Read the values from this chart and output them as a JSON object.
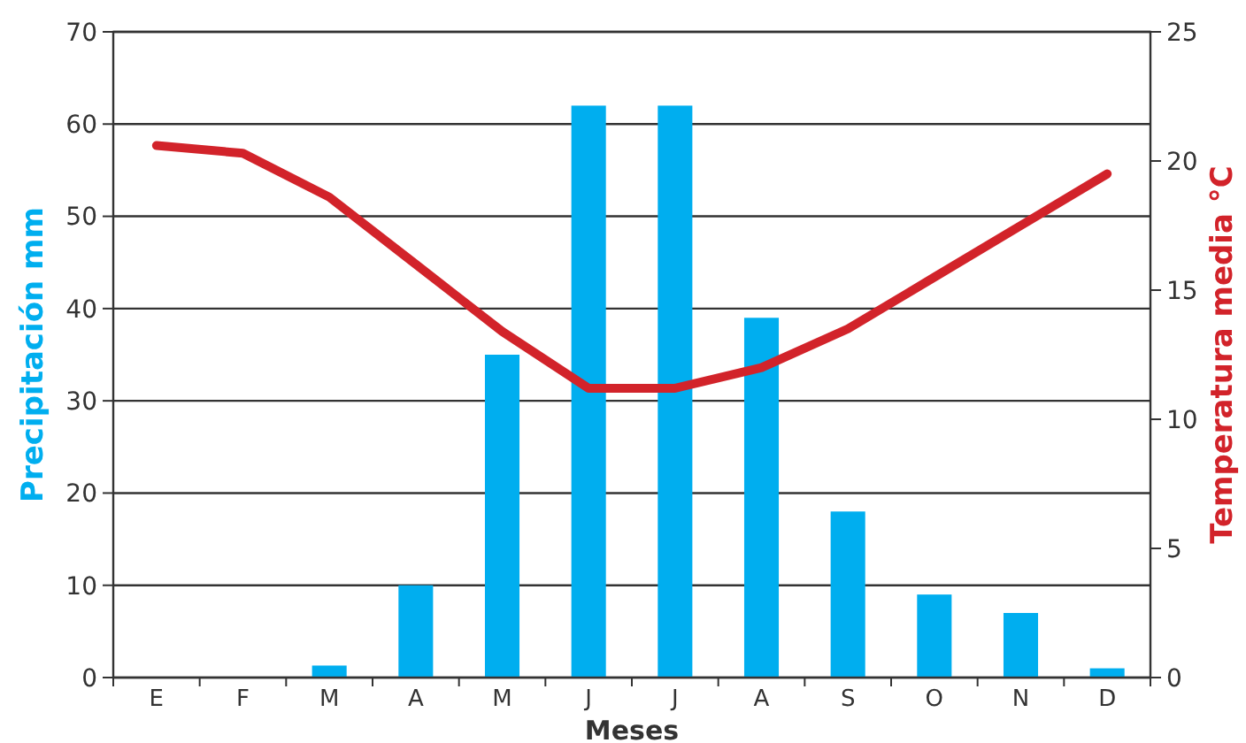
{
  "chart_data": {
    "type": "bar",
    "xlabel": "Meses",
    "ylabel": "Precipitación mm",
    "y2label": "Temperatura media °C",
    "categories": [
      "E",
      "F",
      "M",
      "A",
      "M",
      "J",
      "J",
      "A",
      "S",
      "O",
      "N",
      "D"
    ],
    "series": [
      {
        "color": "#00aeef",
        "values": [
          0,
          0,
          1.3,
          10,
          35,
          62,
          62,
          39,
          18,
          9,
          7,
          1
        ]
      },
      {
        "type": "line",
        "axis": "y2",
        "color": "#d2232a",
        "values": [
          20.6,
          20.3,
          18.6,
          16,
          13.4,
          11.2,
          11.2,
          12,
          13.5,
          15.5,
          17.5,
          19.5
        ]
      }
    ],
    "ylim": [
      0,
      70
    ],
    "yticks": [
      0,
      10,
      20,
      30,
      40,
      50,
      60,
      70
    ],
    "y2lim": [
      0,
      25
    ],
    "y2ticks": [
      0,
      5,
      10,
      15,
      20,
      25
    ],
    "grid": "y",
    "marker": "none",
    "line_style": "solid"
  }
}
